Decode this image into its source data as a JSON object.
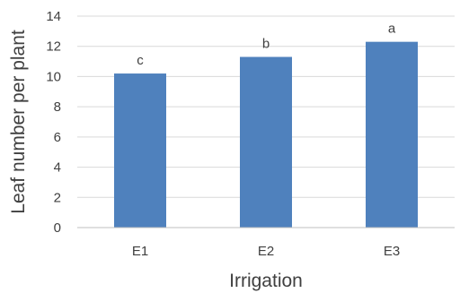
{
  "chart_data": {
    "type": "bar",
    "title": "",
    "xlabel": "Irrigation",
    "ylabel": "Leaf number per plant",
    "categories": [
      "E1",
      "E2",
      "E3"
    ],
    "values": [
      10.2,
      11.3,
      12.3
    ],
    "data_labels": [
      "c",
      "b",
      "a"
    ],
    "ylim": [
      0,
      14
    ],
    "yticks": [
      0,
      2,
      4,
      6,
      8,
      10,
      12,
      14
    ],
    "grid": true,
    "legend": "none",
    "bar_color": "#4f81bd"
  }
}
